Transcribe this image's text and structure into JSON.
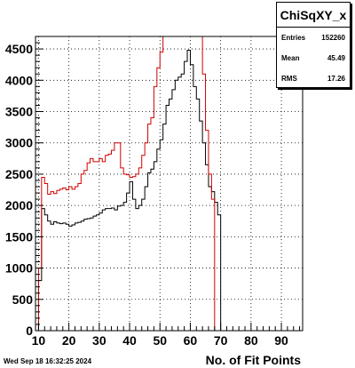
{
  "chart_data": {
    "type": "line",
    "title": "",
    "xlabel": "No. of Fit Points",
    "ylabel": "",
    "xlim": [
      9,
      97
    ],
    "ylim": [
      0,
      4700
    ],
    "grid": true,
    "x_ticks": [
      10,
      20,
      30,
      40,
      50,
      60,
      70,
      80,
      90
    ],
    "y_ticks": [
      0,
      500,
      1000,
      1500,
      2000,
      2500,
      3000,
      3500,
      4000,
      4500
    ],
    "bin_width": 1,
    "series": [
      {
        "color": "#000000",
        "start": 9,
        "values": [
          0,
          800,
          1950,
          1850,
          1750,
          1700,
          1740,
          1720,
          1710,
          1720,
          1700,
          1670,
          1690,
          1720,
          1730,
          1750,
          1780,
          1790,
          1800,
          1830,
          1850,
          1880,
          1930,
          1950,
          1950,
          1960,
          1930,
          1990,
          2000,
          2050,
          2200,
          2380,
          2100,
          1950,
          2000,
          2100,
          2300,
          2520,
          2580,
          2700,
          2900,
          3050,
          3300,
          3600,
          3700,
          3850,
          4000,
          4050,
          4100,
          4300,
          4480,
          4250,
          3900,
          3700,
          3350,
          3000,
          2650,
          2300,
          2220,
          2050,
          1850,
          0
        ]
      },
      {
        "color": "#d40000",
        "start": 9,
        "values": [
          0,
          1000,
          2450,
          2350,
          2180,
          2220,
          2190,
          2240,
          2260,
          2280,
          2250,
          2300,
          2260,
          2300,
          2350,
          2500,
          2560,
          2680,
          2750,
          2700,
          2700,
          2750,
          2700,
          2800,
          2820,
          2880,
          3000,
          3000,
          2600,
          2500,
          2490,
          2450,
          2460,
          2500,
          2600,
          2800,
          3000,
          3300,
          3400,
          3900,
          4200,
          4450,
          4700,
          4700,
          4700,
          4700,
          4700,
          4700,
          4700,
          4700,
          4700,
          4700,
          4700,
          4700,
          4700,
          4100,
          3200,
          2500,
          2100,
          0,
          0,
          0,
          0
        ]
      }
    ]
  },
  "stats": {
    "name": "ChiSqXY_x",
    "entries_label": "Entries",
    "entries_value": "152260",
    "mean_label": "Mean",
    "mean_value": "45.49",
    "rms_label": "RMS",
    "rms_value": "17.26"
  },
  "timestamp": "Wed Sep 18 16:32:25 2024"
}
